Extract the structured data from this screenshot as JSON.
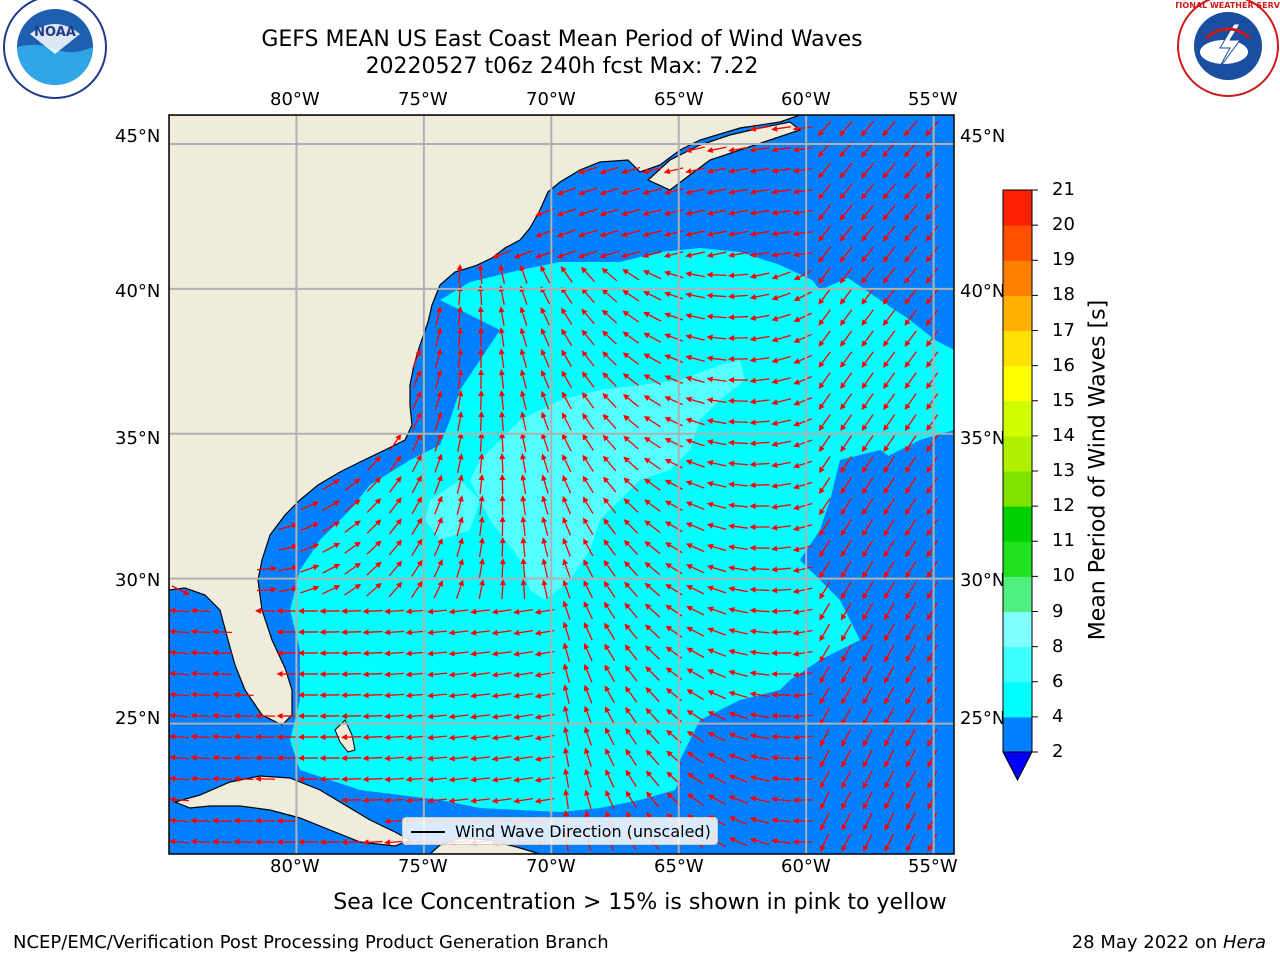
{
  "title": {
    "line1": "GEFS MEAN US East Coast Mean Period of Wind Waves",
    "line2": "20220527 t06z 240h fcst   Max: 7.22"
  },
  "map": {
    "lon_labels": [
      "80°W",
      "75°W",
      "70°W",
      "65°W",
      "60°W",
      "55°W"
    ],
    "lat_labels": [
      "45°N",
      "40°N",
      "35°N",
      "30°N",
      "25°N"
    ],
    "extent": {
      "lon_min": -85,
      "lon_max": -54.2,
      "lat_min": 20.5,
      "lat_max": 46
    },
    "colors": {
      "land": "#efecdb",
      "ocean_deep": "#0080ff",
      "ocean_mid": "#00ffff",
      "ocean_light": "#55ffff",
      "arrows": "#ff0000",
      "grid": "#b0b0b0"
    }
  },
  "legend": {
    "label": "Wind Wave Direction (unscaled)"
  },
  "colorbar": {
    "title": "Mean Period of Wind Waves [s]",
    "ticks": [
      "2",
      "4",
      "6",
      "8",
      "9",
      "10",
      "11",
      "12",
      "13",
      "14",
      "15",
      "16",
      "17",
      "18",
      "19",
      "20",
      "21"
    ],
    "colors": [
      "#0080ff",
      "#00ffff",
      "#40ffff",
      "#80ffff",
      "#aaffff",
      "#50f080",
      "#20e020",
      "#00d000",
      "#80e000",
      "#b0f000",
      "#d0ff00",
      "#ffff00",
      "#ffe000",
      "#ffb000",
      "#ff8000",
      "#ff5000",
      "#ff2000",
      "#ff0000"
    ],
    "under_color": "#0000ff"
  },
  "note": "Sea Ice Concentration > 15% is shown in pink to yellow",
  "footer": {
    "left": "NCEP/EMC/Verification Post Processing Product Generation Branch",
    "right_date": "28 May 2022 on ",
    "right_host": "Hera"
  },
  "logos": {
    "noaa_text": "NOAA",
    "nws_text": "NATIONAL WEATHER SERVICE"
  }
}
